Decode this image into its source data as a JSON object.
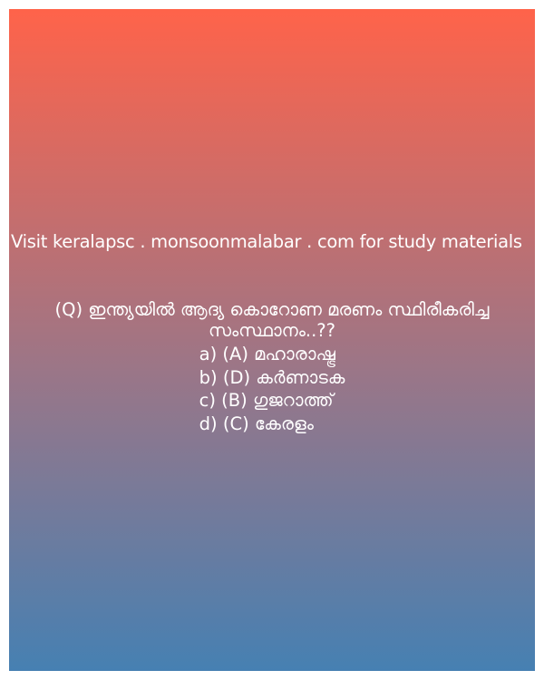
{
  "colors": {
    "gradient_top": "#ff634a",
    "gradient_mid": "#9a7688",
    "gradient_bottom": "#4680b2",
    "text": "#ffffff"
  },
  "promo_text": "Visit keralapsc . monsoonmalabar . com for study materials",
  "question": "(Q) ഇന്ത്യയിൽ ആദ്യ കൊറോണ മരണം സ്ഥിരീകരിച്ച സംസ്ഥാനം..??",
  "options": [
    "a) (A) മഹാരാഷ്ട്ര",
    "b) (D) കർണാടക",
    "c) (B) ഗുജറാത്ത്",
    "d) (C) കേരളം"
  ]
}
